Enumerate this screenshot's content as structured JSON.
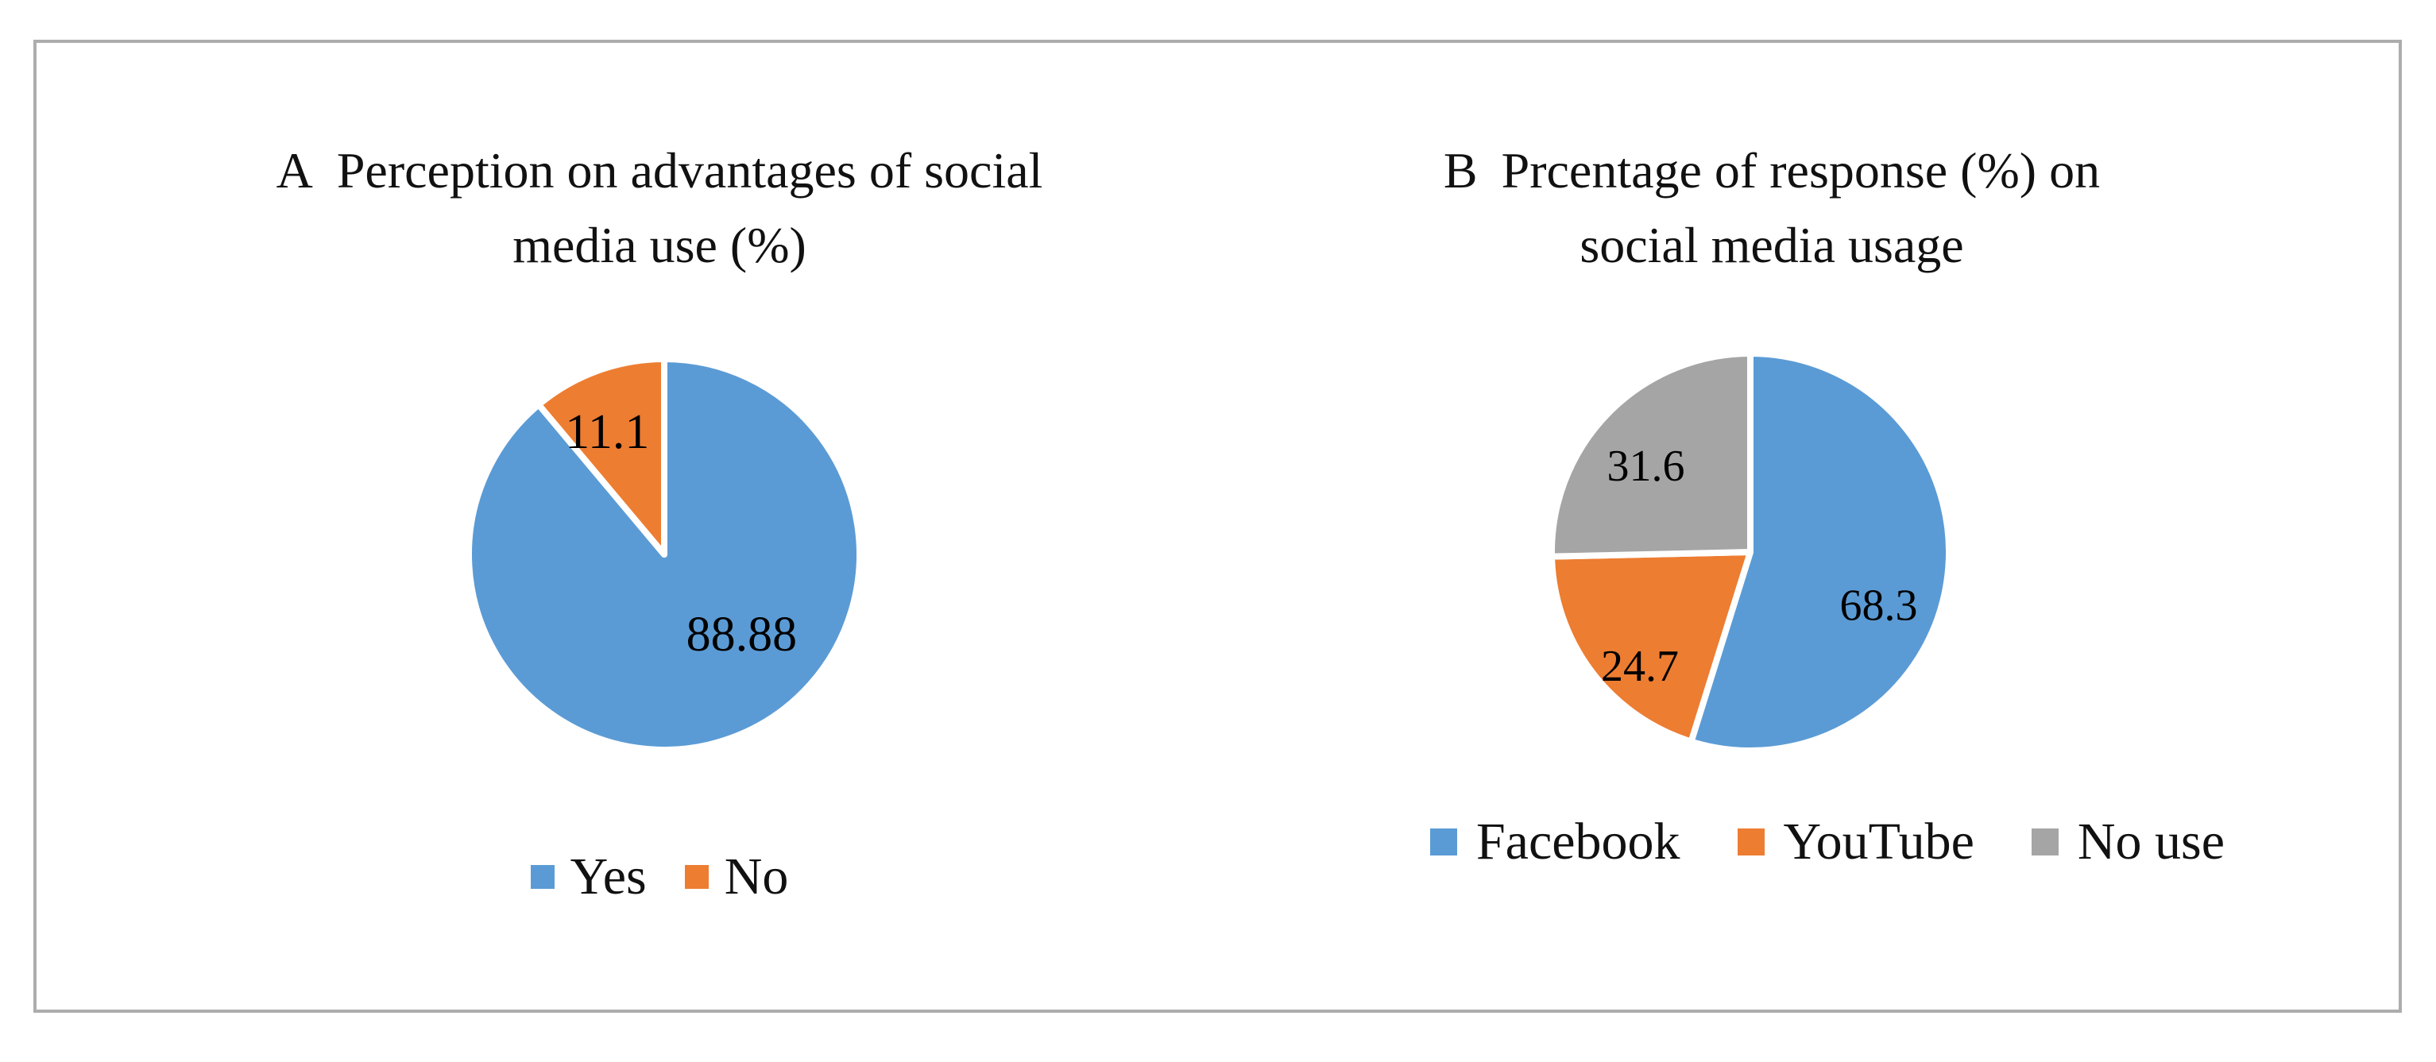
{
  "figure": {
    "background": "#ffffff",
    "border_color": "#adadad",
    "text_color": "#111111",
    "slice_divider_color": "#ffffff"
  },
  "chart_data": [
    {
      "type": "pie",
      "panel_label": "A",
      "title_lines": [
        "Perception on advantages of social",
        "media use (%)"
      ],
      "title": "A Perception on advantages of social media use (%)",
      "categories": [
        "Yes",
        "No"
      ],
      "values": [
        88.88,
        11.1
      ],
      "data_labels": [
        "88.88",
        "11.1"
      ],
      "colors": [
        "#5B9BD5",
        "#ED7D31"
      ],
      "label_color": "#000000",
      "legend_position": "bottom",
      "start_angle_deg": 0,
      "direction": "clockwise"
    },
    {
      "type": "pie",
      "panel_label": "B",
      "title_lines": [
        "Prcentage of response (%) on",
        "social media usage"
      ],
      "title": "B Prcentage of response (%) on social media usage",
      "categories": [
        "Facebook",
        "YouTube",
        "No use"
      ],
      "values": [
        68.3,
        24.7,
        31.6
      ],
      "data_labels": [
        "68.3",
        "24.7",
        "31.6"
      ],
      "colors": [
        "#5B9BD5",
        "#ED7D31",
        "#A5A5A5"
      ],
      "label_color": "#000000",
      "legend_position": "bottom",
      "start_angle_deg": 0,
      "direction": "clockwise"
    }
  ]
}
